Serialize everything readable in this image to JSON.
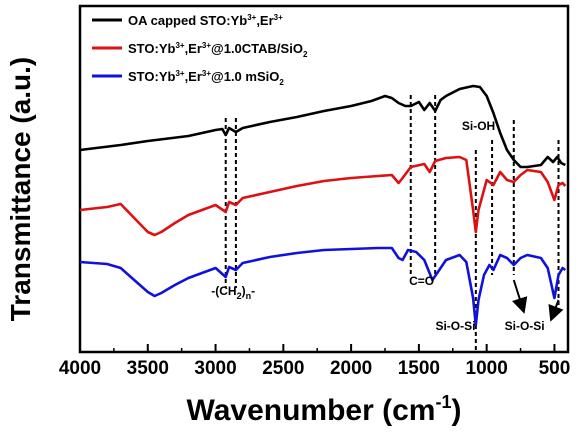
{
  "chart_data": {
    "type": "line",
    "title": "",
    "xlabel": "Wavenumber (cm-1)",
    "xlabel_parts": {
      "main": "Wavenumber (cm",
      "sup": "-1",
      "close": ")"
    },
    "ylabel": "Transmittance (a.u.)",
    "xlim": [
      4000,
      400
    ],
    "x_reversed": true,
    "x_ticks": [
      4000,
      3500,
      3000,
      2500,
      2000,
      1500,
      1000,
      500
    ],
    "y_ticks_shown": false,
    "grid": false,
    "legend_position": "top-left",
    "series": [
      {
        "name": "OA capped STO:Yb3+,Er3+",
        "color": "#000000",
        "y_offset": 0,
        "points": [
          [
            4000,
            150
          ],
          [
            3700,
            145
          ],
          [
            3500,
            141
          ],
          [
            3200,
            136
          ],
          [
            3000,
            130
          ],
          [
            2950,
            129
          ],
          [
            2925,
            135
          ],
          [
            2900,
            128
          ],
          [
            2850,
            132
          ],
          [
            2800,
            128
          ],
          [
            2600,
            122
          ],
          [
            2400,
            117
          ],
          [
            2200,
            111
          ],
          [
            2000,
            106
          ],
          [
            1850,
            101
          ],
          [
            1750,
            96
          ],
          [
            1700,
            98
          ],
          [
            1650,
            103
          ],
          [
            1600,
            106
          ],
          [
            1560,
            106
          ],
          [
            1500,
            102
          ],
          [
            1460,
            110
          ],
          [
            1420,
            103
          ],
          [
            1380,
            111
          ],
          [
            1340,
            100
          ],
          [
            1300,
            96
          ],
          [
            1200,
            89
          ],
          [
            1100,
            86
          ],
          [
            1050,
            87
          ],
          [
            1000,
            96
          ],
          [
            950,
            113
          ],
          [
            900,
            133
          ],
          [
            850,
            150
          ],
          [
            800,
            160
          ],
          [
            750,
            167
          ],
          [
            700,
            167
          ],
          [
            600,
            165
          ],
          [
            550,
            157
          ],
          [
            510,
            162
          ],
          [
            480,
            157
          ],
          [
            450,
            163
          ],
          [
            420,
            165
          ]
        ]
      },
      {
        "name": "STO:Yb3+,Er3+@1.0CTAB/SiO2",
        "color": "#dd1111",
        "y_offset": 0,
        "points": [
          [
            4000,
            210
          ],
          [
            3800,
            207
          ],
          [
            3700,
            204
          ],
          [
            3600,
            218
          ],
          [
            3500,
            232
          ],
          [
            3450,
            235
          ],
          [
            3400,
            232
          ],
          [
            3300,
            223
          ],
          [
            3200,
            215
          ],
          [
            3000,
            205
          ],
          [
            2925,
            212
          ],
          [
            2900,
            202
          ],
          [
            2850,
            205
          ],
          [
            2800,
            198
          ],
          [
            2600,
            192
          ],
          [
            2400,
            186
          ],
          [
            2200,
            181
          ],
          [
            2000,
            178
          ],
          [
            1800,
            176
          ],
          [
            1700,
            175
          ],
          [
            1650,
            183
          ],
          [
            1620,
            178
          ],
          [
            1560,
            167
          ],
          [
            1460,
            164
          ],
          [
            1420,
            172
          ],
          [
            1380,
            161
          ],
          [
            1300,
            158
          ],
          [
            1200,
            157
          ],
          [
            1150,
            160
          ],
          [
            1100,
            210
          ],
          [
            1080,
            232
          ],
          [
            1060,
            210
          ],
          [
            1000,
            180
          ],
          [
            950,
            185
          ],
          [
            900,
            172
          ],
          [
            850,
            180
          ],
          [
            800,
            182
          ],
          [
            750,
            175
          ],
          [
            700,
            170
          ],
          [
            600,
            172
          ],
          [
            550,
            182
          ],
          [
            500,
            200
          ],
          [
            470,
            185
          ],
          [
            440,
            183
          ],
          [
            420,
            186
          ]
        ]
      },
      {
        "name": "STO:Yb3+,Er3+@1.0 mSiO2",
        "color": "#1111dd",
        "y_offset": 0,
        "points": [
          [
            4000,
            262
          ],
          [
            3800,
            264
          ],
          [
            3700,
            268
          ],
          [
            3600,
            280
          ],
          [
            3500,
            292
          ],
          [
            3450,
            296
          ],
          [
            3400,
            293
          ],
          [
            3300,
            285
          ],
          [
            3200,
            278
          ],
          [
            3000,
            268
          ],
          [
            2925,
            277
          ],
          [
            2900,
            267
          ],
          [
            2850,
            270
          ],
          [
            2800,
            263
          ],
          [
            2600,
            257
          ],
          [
            2400,
            253
          ],
          [
            2200,
            250
          ],
          [
            2000,
            249
          ],
          [
            1800,
            248
          ],
          [
            1700,
            248
          ],
          [
            1650,
            258
          ],
          [
            1620,
            260
          ],
          [
            1580,
            250
          ],
          [
            1520,
            252
          ],
          [
            1460,
            260
          ],
          [
            1400,
            280
          ],
          [
            1360,
            272
          ],
          [
            1300,
            260
          ],
          [
            1200,
            255
          ],
          [
            1150,
            262
          ],
          [
            1100,
            298
          ],
          [
            1080,
            325
          ],
          [
            1060,
            300
          ],
          [
            1020,
            275
          ],
          [
            980,
            265
          ],
          [
            950,
            270
          ],
          [
            900,
            255
          ],
          [
            850,
            258
          ],
          [
            800,
            265
          ],
          [
            750,
            258
          ],
          [
            700,
            255
          ],
          [
            600,
            258
          ],
          [
            550,
            268
          ],
          [
            500,
            298
          ],
          [
            470,
            275
          ],
          [
            440,
            268
          ],
          [
            420,
            270
          ]
        ]
      }
    ],
    "legend": [
      {
        "label_main": "OA capped STO:Yb",
        "label_sup1": "3+",
        "label_mid": ",Er",
        "label_sup2": "3+",
        "label_tail": "",
        "label_sub": "",
        "color": "#000000"
      },
      {
        "label_main": "STO:Yb",
        "label_sup1": "3+",
        "label_mid": ",Er",
        "label_sup2": "3+",
        "label_tail": "@1.0CTAB/SiO",
        "label_sub": "2",
        "color": "#dd1111"
      },
      {
        "label_main": "STO:Yb",
        "label_sup1": "3+",
        "label_mid": ",Er",
        "label_sup2": "3+",
        "label_tail": "@1.0 mSiO",
        "label_sub": "2",
        "color": "#1111dd"
      }
    ],
    "annotations": [
      {
        "text": "-(CH",
        "sub": "2",
        "tail": ")",
        "sub2": "n",
        "tail2": "-",
        "x": 2870,
        "y": 295
      },
      {
        "text": "C=O",
        "x": 1480,
        "y": 285
      },
      {
        "text": "Si-OH",
        "x": 1060,
        "y": 130
      },
      {
        "text": "Si-O-Si",
        "x": 1230,
        "y": 330
      },
      {
        "text": "Si-O-Si",
        "x": 720,
        "y": 330
      }
    ],
    "guide_lines": [
      2925,
      2850,
      1560,
      1380,
      1080,
      960,
      800,
      470
    ]
  }
}
